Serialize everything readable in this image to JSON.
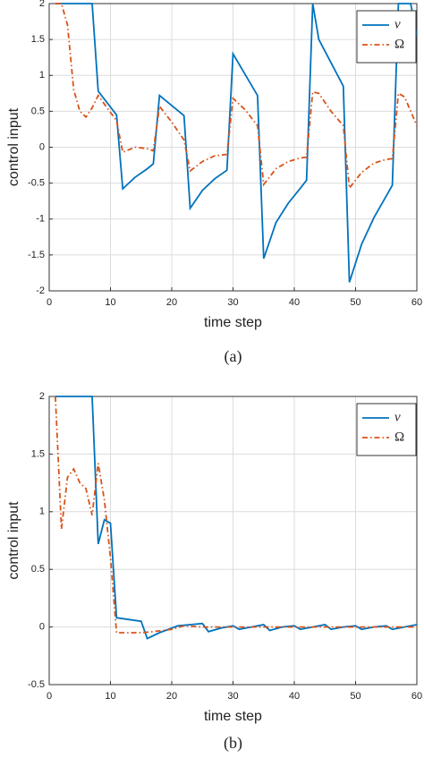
{
  "chart_data": [
    {
      "type": "line",
      "xlabel": "time step",
      "ylabel": "control input",
      "caption": "(a)",
      "grid": true,
      "legend": "upper right",
      "xlim": [
        0,
        60
      ],
      "xticks": [
        0,
        10,
        20,
        30,
        40,
        50,
        60
      ],
      "ylim": [
        -2,
        2
      ],
      "yticks": [
        -2,
        -1.5,
        -1,
        -0.5,
        0,
        0.5,
        1,
        1.5,
        2
      ],
      "series": [
        {
          "name": "v",
          "color": "#0072bd",
          "dash": "solid",
          "x": [
            1,
            7,
            8,
            11,
            12,
            14,
            16,
            17,
            18,
            22,
            23,
            25,
            27,
            29,
            30,
            34,
            35,
            37,
            39,
            41,
            42,
            43,
            44,
            48,
            49,
            51,
            53,
            55,
            56,
            57,
            59,
            60
          ],
          "values": [
            2,
            2,
            0.78,
            0.45,
            -0.58,
            -0.42,
            -0.3,
            -0.23,
            0.72,
            0.44,
            -0.85,
            -0.6,
            -0.44,
            -0.32,
            1.3,
            0.72,
            -1.55,
            -1.05,
            -0.78,
            -0.57,
            -0.46,
            2,
            1.5,
            0.85,
            -1.88,
            -1.35,
            -0.98,
            -0.68,
            -0.53,
            2,
            2,
            1.55
          ]
        },
        {
          "name": "Ω",
          "color": "#d95319",
          "dash": "dashdot",
          "x": [
            1,
            2,
            3,
            4,
            5,
            6,
            7,
            8,
            9,
            11,
            12,
            14,
            16,
            17,
            18,
            20,
            22,
            23,
            25,
            27,
            29,
            30,
            32,
            34,
            35,
            37,
            39,
            41,
            42,
            43,
            44,
            46,
            48,
            49,
            51,
            53,
            55,
            56,
            57,
            58,
            60
          ],
          "values": [
            2,
            2,
            1.7,
            0.8,
            0.5,
            0.42,
            0.55,
            0.72,
            0.6,
            0.37,
            -0.07,
            0,
            -0.02,
            -0.05,
            0.57,
            0.35,
            0.1,
            -0.33,
            -0.2,
            -0.12,
            -0.1,
            0.68,
            0.52,
            0.3,
            -0.52,
            -0.3,
            -0.2,
            -0.15,
            -0.14,
            0.77,
            0.75,
            0.5,
            0.3,
            -0.57,
            -0.35,
            -0.22,
            -0.17,
            -0.16,
            0.75,
            0.7,
            0.3
          ]
        }
      ]
    },
    {
      "type": "line",
      "xlabel": "time step",
      "ylabel": "control input",
      "caption": "(b)",
      "grid": true,
      "legend": "upper right",
      "xlim": [
        0,
        60
      ],
      "xticks": [
        0,
        10,
        20,
        30,
        40,
        50,
        60
      ],
      "ylim": [
        -0.5,
        2
      ],
      "yticks": [
        -0.5,
        0,
        0.5,
        1,
        1.5,
        2
      ],
      "series": [
        {
          "name": "v",
          "color": "#0072bd",
          "dash": "solid",
          "x": [
            1,
            7,
            8,
            9,
            10,
            11,
            15,
            16,
            18,
            21,
            23,
            25,
            26,
            28,
            30,
            31,
            33,
            35,
            36,
            38,
            40,
            41,
            43,
            45,
            46,
            48,
            50,
            51,
            53,
            55,
            56,
            58,
            60
          ],
          "values": [
            2,
            2,
            0.72,
            0.93,
            0.9,
            0.08,
            0.05,
            -0.1,
            -0.05,
            0.01,
            0.02,
            0.03,
            -0.04,
            -0.01,
            0.01,
            -0.02,
            0,
            0.02,
            -0.03,
            0,
            0.01,
            -0.02,
            0,
            0.02,
            -0.02,
            0,
            0.01,
            -0.02,
            0,
            0.01,
            -0.02,
            0,
            0.02
          ]
        },
        {
          "name": "Ω",
          "color": "#d95319",
          "dash": "dashdot",
          "x": [
            1,
            2,
            3,
            4,
            5,
            6,
            7,
            8,
            9,
            10,
            11,
            15,
            17,
            20,
            22,
            25,
            30,
            35,
            40,
            45,
            50,
            55,
            60
          ],
          "values": [
            2,
            0.85,
            1.3,
            1.37,
            1.25,
            1.2,
            0.97,
            1.42,
            1.1,
            0.6,
            -0.05,
            -0.05,
            -0.04,
            -0.02,
            0.01,
            0,
            0,
            0,
            0,
            0,
            0,
            0,
            0
          ]
        }
      ]
    }
  ]
}
